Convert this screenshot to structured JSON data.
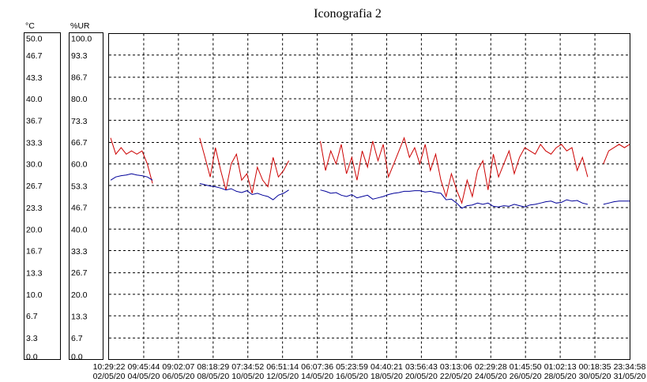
{
  "chart_data": {
    "type": "line",
    "title": "Iconografia 2",
    "y_label": "°C",
    "y2_label": "%UR",
    "ylim": [
      0,
      50
    ],
    "yticks": [
      {
        "value": 0,
        "label": "0.0"
      },
      3.3,
      6.7,
      {
        "value": 10,
        "label": "10.0"
      },
      13.3,
      16.7,
      {
        "value": 20,
        "label": "20.0"
      },
      23.3,
      26.7,
      {
        "value": 30,
        "label": "30.0"
      },
      33.3,
      36.7,
      {
        "value": 40,
        "label": "40.0"
      },
      43.3,
      46.7,
      {
        "value": 50,
        "label": "50.0"
      }
    ],
    "y2lim": [
      0,
      100
    ],
    "y2ticks": [
      {
        "value": 0,
        "label": "0.0"
      },
      6.7,
      13.3,
      {
        "value": 20,
        "label": "20.0"
      },
      26.7,
      33.3,
      {
        "value": 40,
        "label": "40.0"
      },
      46.7,
      53.3,
      {
        "value": 60,
        "label": "60.0"
      },
      66.7,
      73.3,
      {
        "value": 80,
        "label": "80.0"
      },
      86.7,
      93.3,
      {
        "value": 100,
        "label": "100.0"
      }
    ],
    "xticks": [
      {
        "time": "10:29:22",
        "date": "02/05/20"
      },
      {
        "time": "09:45:44",
        "date": "04/05/20"
      },
      {
        "time": "09:02:07",
        "date": "06/05/20"
      },
      {
        "time": "08:18:29",
        "date": "08/05/20"
      },
      {
        "time": "07:34:52",
        "date": "10/05/20"
      },
      {
        "time": "06:51:14",
        "date": "12/05/20"
      },
      {
        "time": "06:07:36",
        "date": "14/05/20"
      },
      {
        "time": "05:23:59",
        "date": "16/05/20"
      },
      {
        "time": "04:40:21",
        "date": "18/05/20"
      },
      {
        "time": "03:56:43",
        "date": "20/05/20"
      },
      {
        "time": "03:13:06",
        "date": "22/05/20"
      },
      {
        "time": "02:29:28",
        "date": "24/05/20"
      },
      {
        "time": "01:45:50",
        "date": "26/05/20"
      },
      {
        "time": "01:02:13",
        "date": "28/05/20"
      },
      {
        "time": "00:18:35",
        "date": "30/05/20"
      },
      {
        "time": "23:34:58",
        "date": "31/05/20"
      }
    ],
    "grid": true,
    "series": [
      {
        "color": "#cc0000",
        "axis": "y2",
        "values": [
          68,
          63,
          65,
          63,
          64,
          63,
          64,
          60,
          54,
          null,
          null,
          null,
          null,
          null,
          null,
          null,
          null,
          68,
          62,
          56,
          65,
          58,
          52,
          60,
          63,
          55,
          57,
          51,
          59,
          55,
          53,
          62,
          56,
          58,
          61,
          null,
          null,
          null,
          null,
          null,
          67,
          58,
          64,
          60,
          66,
          57,
          62,
          55,
          64,
          59,
          67,
          61,
          66,
          56,
          60,
          64,
          68,
          62,
          65,
          60,
          66,
          58,
          63,
          55,
          50,
          57,
          52,
          48,
          55,
          50,
          58,
          61,
          52,
          63,
          56,
          60,
          64,
          57,
          62,
          65,
          64,
          63,
          66,
          64,
          63,
          65,
          66,
          64,
          65,
          58,
          62,
          56,
          null,
          null,
          60,
          64,
          65,
          66,
          65,
          66
        ]
      },
      {
        "color": "#000099",
        "axis": "y",
        "values": [
          27.5,
          28,
          28.2,
          28.3,
          28.5,
          28.3,
          28.2,
          28,
          27.5,
          null,
          null,
          null,
          null,
          null,
          null,
          null,
          null,
          27,
          26.8,
          26.6,
          26.5,
          26.3,
          26,
          26.2,
          25.8,
          25.6,
          25.9,
          25.3,
          25.5,
          25.2,
          25,
          24.5,
          25.2,
          25.5,
          26,
          null,
          null,
          null,
          null,
          null,
          26,
          25.8,
          25.5,
          25.6,
          25.2,
          25,
          25.3,
          24.8,
          25,
          25.2,
          24.6,
          24.8,
          25,
          25.3,
          25.5,
          25.6,
          25.8,
          25.8,
          25.9,
          25.9,
          25.7,
          25.8,
          25.6,
          25.5,
          24.5,
          24.6,
          24,
          23.2,
          23.6,
          23.7,
          24,
          23.8,
          24,
          23.5,
          23.4,
          23.6,
          23.5,
          23.8,
          23.6,
          23.4,
          23.7,
          23.8,
          24,
          24.2,
          24.3,
          24,
          24.1,
          24.5,
          24.3,
          24.4,
          24,
          23.8,
          null,
          null,
          23.8,
          24,
          24.2,
          24.3,
          24.3,
          24.3
        ]
      }
    ]
  }
}
